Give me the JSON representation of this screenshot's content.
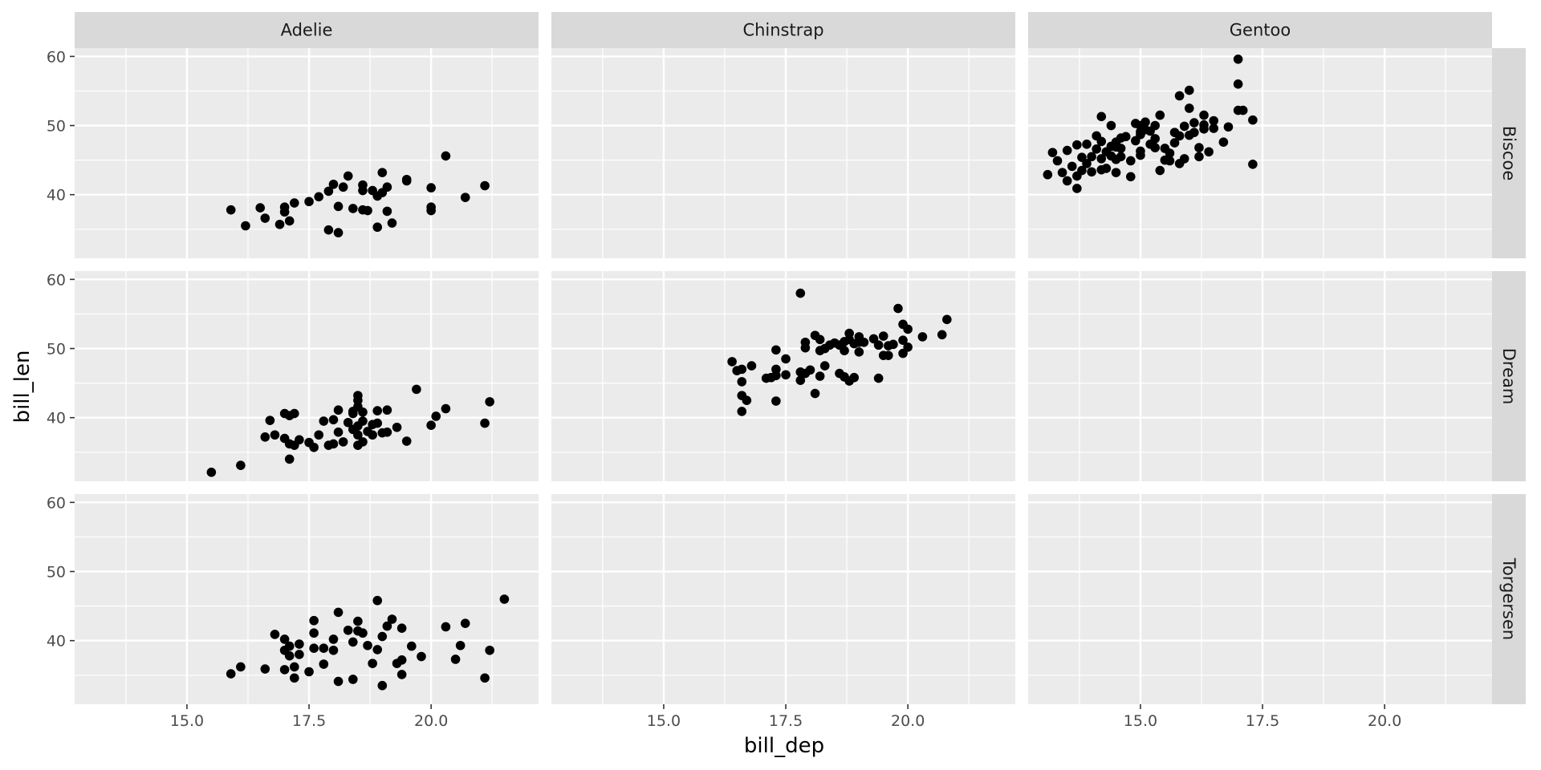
{
  "chart_data": {
    "type": "scatter",
    "facet": {
      "cols": [
        "Adelie",
        "Chinstrap",
        "Gentoo"
      ],
      "rows": [
        "Biscoe",
        "Dream",
        "Torgersen"
      ]
    },
    "xlabel": "bill_dep",
    "ylabel": "bill_len",
    "xlim": [
      12.7,
      22.2
    ],
    "ylim": [
      30.8,
      61.2
    ],
    "x_ticks": [
      15.0,
      17.5,
      20.0
    ],
    "x_tick_labels": [
      "15.0",
      "17.5",
      "20.0"
    ],
    "y_ticks": [
      40,
      50,
      60
    ],
    "y_tick_labels": [
      "40",
      "50",
      "60"
    ],
    "grid": true,
    "point_color": "#000000",
    "panel_background": "#ebebeb",
    "strip_background": "#d9d9d9",
    "panels": [
      {
        "col": "Adelie",
        "row": "Biscoe",
        "points": [
          [
            15.9,
            37.8
          ],
          [
            16.2,
            35.5
          ],
          [
            16.5,
            38.1
          ],
          [
            16.6,
            36.6
          ],
          [
            16.9,
            35.7
          ],
          [
            17.0,
            37.5
          ],
          [
            17.0,
            38.2
          ],
          [
            17.1,
            36.2
          ],
          [
            17.2,
            38.8
          ],
          [
            17.5,
            39.0
          ],
          [
            17.7,
            39.7
          ],
          [
            17.9,
            40.5
          ],
          [
            17.9,
            34.9
          ],
          [
            18.0,
            41.5
          ],
          [
            18.1,
            38.3
          ],
          [
            18.1,
            34.5
          ],
          [
            18.2,
            41.1
          ],
          [
            18.3,
            42.7
          ],
          [
            18.4,
            38.0
          ],
          [
            18.6,
            41.4
          ],
          [
            18.6,
            40.6
          ],
          [
            18.6,
            37.8
          ],
          [
            18.7,
            37.7
          ],
          [
            18.8,
            40.6
          ],
          [
            18.9,
            39.8
          ],
          [
            18.9,
            35.3
          ],
          [
            19.0,
            40.3
          ],
          [
            19.0,
            43.2
          ],
          [
            19.1,
            41.1
          ],
          [
            19.1,
            37.6
          ],
          [
            19.2,
            35.9
          ],
          [
            19.5,
            42.0
          ],
          [
            19.5,
            42.2
          ],
          [
            20.0,
            41.0
          ],
          [
            20.0,
            38.2
          ],
          [
            20.0,
            37.7
          ],
          [
            20.3,
            45.6
          ],
          [
            20.7,
            39.6
          ],
          [
            21.1,
            41.3
          ]
        ]
      },
      {
        "col": "Chinstrap",
        "row": "Biscoe",
        "points": []
      },
      {
        "col": "Gentoo",
        "row": "Biscoe",
        "points": [
          [
            13.1,
            42.9
          ],
          [
            13.2,
            46.1
          ],
          [
            13.3,
            44.9
          ],
          [
            13.4,
            43.2
          ],
          [
            13.5,
            42.0
          ],
          [
            13.5,
            46.4
          ],
          [
            13.6,
            44.1
          ],
          [
            13.7,
            40.9
          ],
          [
            13.7,
            42.7
          ],
          [
            13.7,
            47.2
          ],
          [
            13.8,
            45.4
          ],
          [
            13.8,
            43.5
          ],
          [
            13.9,
            47.3
          ],
          [
            13.9,
            44.5
          ],
          [
            14.0,
            45.5
          ],
          [
            14.0,
            43.3
          ],
          [
            14.1,
            46.6
          ],
          [
            14.1,
            48.5
          ],
          [
            14.2,
            43.6
          ],
          [
            14.2,
            45.2
          ],
          [
            14.2,
            47.7
          ],
          [
            14.2,
            51.3
          ],
          [
            14.3,
            46.2
          ],
          [
            14.3,
            43.8
          ],
          [
            14.4,
            50.0
          ],
          [
            14.4,
            45.6
          ],
          [
            14.4,
            47.0
          ],
          [
            14.5,
            47.6
          ],
          [
            14.5,
            46.9
          ],
          [
            14.5,
            45.1
          ],
          [
            14.5,
            43.2
          ],
          [
            14.6,
            48.2
          ],
          [
            14.6,
            45.5
          ],
          [
            14.6,
            46.7
          ],
          [
            14.7,
            48.4
          ],
          [
            14.8,
            44.9
          ],
          [
            14.8,
            42.6
          ],
          [
            14.9,
            47.8
          ],
          [
            15.0,
            46.3
          ],
          [
            15.0,
            49.1
          ],
          [
            15.0,
            48.7
          ],
          [
            15.0,
            50.0
          ],
          [
            15.0,
            45.7
          ],
          [
            15.1,
            49.4
          ],
          [
            15.1,
            50.5
          ],
          [
            15.2,
            49.2
          ],
          [
            15.2,
            47.3
          ],
          [
            15.3,
            46.8
          ],
          [
            15.3,
            48.1
          ],
          [
            15.3,
            50.0
          ],
          [
            15.4,
            43.5
          ],
          [
            15.5,
            46.7
          ],
          [
            15.5,
            45.0
          ],
          [
            15.6,
            44.9
          ],
          [
            15.7,
            47.5
          ],
          [
            15.7,
            49.0
          ],
          [
            15.8,
            48.5
          ],
          [
            15.8,
            44.5
          ],
          [
            15.9,
            49.9
          ],
          [
            15.9,
            45.2
          ],
          [
            16.0,
            52.5
          ],
          [
            16.0,
            48.6
          ],
          [
            16.1,
            50.4
          ],
          [
            16.1,
            49.0
          ],
          [
            16.2,
            46.8
          ],
          [
            16.2,
            45.5
          ],
          [
            16.3,
            49.5
          ],
          [
            16.3,
            51.5
          ],
          [
            16.3,
            50.1
          ],
          [
            16.4,
            46.2
          ],
          [
            16.5,
            49.6
          ],
          [
            16.5,
            50.7
          ],
          [
            16.8,
            49.8
          ],
          [
            16.7,
            47.6
          ],
          [
            17.0,
            52.2
          ],
          [
            17.0,
            56.0
          ],
          [
            17.0,
            59.6
          ],
          [
            17.1,
            52.2
          ],
          [
            17.3,
            50.8
          ],
          [
            17.3,
            44.4
          ],
          [
            15.8,
            54.3
          ],
          [
            16.0,
            55.1
          ],
          [
            15.4,
            51.5
          ],
          [
            14.9,
            50.3
          ],
          [
            15.6,
            46.0
          ]
        ]
      },
      {
        "col": "Adelie",
        "row": "Dream",
        "points": [
          [
            15.5,
            32.1
          ],
          [
            16.1,
            33.1
          ],
          [
            16.6,
            37.2
          ],
          [
            16.7,
            39.6
          ],
          [
            16.8,
            37.5
          ],
          [
            17.0,
            37.0
          ],
          [
            17.0,
            40.6
          ],
          [
            17.1,
            36.2
          ],
          [
            17.1,
            40.3
          ],
          [
            17.2,
            36.0
          ],
          [
            17.2,
            40.6
          ],
          [
            17.5,
            36.4
          ],
          [
            17.7,
            37.5
          ],
          [
            17.8,
            39.5
          ],
          [
            17.9,
            36.0
          ],
          [
            18.0,
            39.7
          ],
          [
            18.0,
            36.2
          ],
          [
            18.1,
            37.9
          ],
          [
            18.1,
            41.1
          ],
          [
            18.2,
            36.5
          ],
          [
            18.3,
            39.3
          ],
          [
            18.4,
            38.3
          ],
          [
            18.4,
            40.6
          ],
          [
            18.5,
            36.0
          ],
          [
            18.5,
            37.5
          ],
          [
            18.5,
            38.8
          ],
          [
            18.5,
            41.6
          ],
          [
            18.5,
            43.2
          ],
          [
            18.6,
            40.8
          ],
          [
            18.6,
            36.5
          ],
          [
            18.6,
            39.5
          ],
          [
            18.7,
            38.0
          ],
          [
            18.8,
            37.5
          ],
          [
            18.9,
            39.2
          ],
          [
            18.9,
            41.0
          ],
          [
            19.0,
            37.8
          ],
          [
            19.1,
            41.1
          ],
          [
            19.1,
            37.9
          ],
          [
            19.3,
            38.6
          ],
          [
            19.5,
            36.6
          ],
          [
            19.7,
            44.1
          ],
          [
            20.0,
            38.9
          ],
          [
            20.1,
            40.2
          ],
          [
            20.3,
            41.3
          ],
          [
            21.1,
            39.2
          ],
          [
            21.2,
            42.3
          ],
          [
            17.1,
            34.0
          ],
          [
            17.3,
            36.8
          ],
          [
            17.6,
            35.7
          ],
          [
            18.4,
            40.9
          ],
          [
            18.5,
            42.5
          ],
          [
            18.8,
            39.0
          ]
        ]
      },
      {
        "col": "Chinstrap",
        "row": "Dream",
        "points": [
          [
            16.4,
            48.1
          ],
          [
            16.5,
            46.8
          ],
          [
            16.6,
            47.0
          ],
          [
            16.6,
            45.2
          ],
          [
            16.6,
            43.2
          ],
          [
            16.6,
            40.9
          ],
          [
            16.7,
            42.5
          ],
          [
            16.8,
            47.5
          ],
          [
            17.1,
            45.7
          ],
          [
            17.2,
            45.8
          ],
          [
            17.3,
            46.1
          ],
          [
            17.3,
            42.4
          ],
          [
            17.3,
            47.0
          ],
          [
            17.3,
            49.8
          ],
          [
            17.5,
            46.2
          ],
          [
            17.5,
            48.5
          ],
          [
            17.8,
            58.0
          ],
          [
            17.8,
            45.4
          ],
          [
            17.8,
            46.6
          ],
          [
            17.9,
            50.9
          ],
          [
            17.9,
            50.1
          ],
          [
            17.9,
            46.4
          ],
          [
            18.0,
            46.9
          ],
          [
            18.1,
            51.9
          ],
          [
            18.1,
            43.5
          ],
          [
            18.2,
            46.0
          ],
          [
            18.2,
            49.7
          ],
          [
            18.2,
            51.3
          ],
          [
            18.3,
            47.5
          ],
          [
            18.4,
            50.5
          ],
          [
            18.5,
            50.8
          ],
          [
            18.6,
            50.5
          ],
          [
            18.6,
            46.4
          ],
          [
            18.7,
            49.7
          ],
          [
            18.7,
            45.9
          ],
          [
            18.8,
            51.3
          ],
          [
            18.8,
            45.3
          ],
          [
            18.8,
            52.2
          ],
          [
            18.9,
            50.7
          ],
          [
            18.9,
            45.8
          ],
          [
            19.0,
            50.9
          ],
          [
            19.0,
            51.7
          ],
          [
            19.0,
            49.5
          ],
          [
            19.1,
            50.9
          ],
          [
            19.3,
            51.4
          ],
          [
            19.4,
            50.5
          ],
          [
            19.4,
            45.7
          ],
          [
            19.5,
            51.8
          ],
          [
            19.5,
            49.0
          ],
          [
            19.6,
            49.0
          ],
          [
            19.6,
            50.4
          ],
          [
            19.7,
            50.6
          ],
          [
            19.8,
            55.8
          ],
          [
            19.9,
            53.5
          ],
          [
            19.9,
            51.2
          ],
          [
            19.9,
            49.3
          ],
          [
            20.0,
            52.8
          ],
          [
            20.0,
            50.2
          ],
          [
            20.3,
            51.7
          ],
          [
            20.7,
            52.0
          ],
          [
            20.8,
            54.2
          ],
          [
            18.3,
            50.0
          ],
          [
            18.7,
            51.0
          ]
        ]
      },
      {
        "col": "Gentoo",
        "row": "Dream",
        "points": []
      },
      {
        "col": "Adelie",
        "row": "Torgersen",
        "points": [
          [
            15.9,
            35.2
          ],
          [
            16.1,
            36.2
          ],
          [
            16.6,
            35.9
          ],
          [
            16.8,
            40.9
          ],
          [
            17.0,
            38.6
          ],
          [
            17.0,
            40.2
          ],
          [
            17.0,
            35.8
          ],
          [
            17.1,
            37.8
          ],
          [
            17.1,
            39.2
          ],
          [
            17.2,
            34.6
          ],
          [
            17.2,
            36.2
          ],
          [
            17.3,
            38.0
          ],
          [
            17.3,
            39.5
          ],
          [
            17.5,
            35.5
          ],
          [
            17.6,
            42.9
          ],
          [
            17.6,
            41.1
          ],
          [
            17.6,
            38.9
          ],
          [
            17.8,
            36.6
          ],
          [
            17.8,
            38.9
          ],
          [
            18.0,
            38.6
          ],
          [
            18.0,
            40.2
          ],
          [
            18.1,
            44.1
          ],
          [
            18.1,
            34.1
          ],
          [
            18.3,
            41.5
          ],
          [
            18.4,
            39.8
          ],
          [
            18.4,
            34.4
          ],
          [
            18.5,
            42.8
          ],
          [
            18.5,
            41.4
          ],
          [
            18.6,
            41.1
          ],
          [
            18.7,
            39.3
          ],
          [
            18.8,
            36.7
          ],
          [
            18.9,
            45.8
          ],
          [
            18.9,
            38.7
          ],
          [
            19.0,
            33.5
          ],
          [
            19.0,
            40.6
          ],
          [
            19.1,
            42.1
          ],
          [
            19.2,
            43.1
          ],
          [
            19.3,
            36.7
          ],
          [
            19.4,
            41.8
          ],
          [
            19.4,
            35.1
          ],
          [
            19.6,
            39.2
          ],
          [
            19.8,
            37.7
          ],
          [
            20.3,
            42.0
          ],
          [
            20.5,
            37.3
          ],
          [
            20.6,
            39.3
          ],
          [
            20.7,
            42.5
          ],
          [
            21.1,
            34.6
          ],
          [
            21.2,
            38.6
          ],
          [
            21.5,
            46.0
          ],
          [
            19.4,
            37.2
          ]
        ]
      },
      {
        "col": "Chinstrap",
        "row": "Torgersen",
        "points": []
      },
      {
        "col": "Gentoo",
        "row": "Torgersen",
        "points": []
      }
    ]
  }
}
